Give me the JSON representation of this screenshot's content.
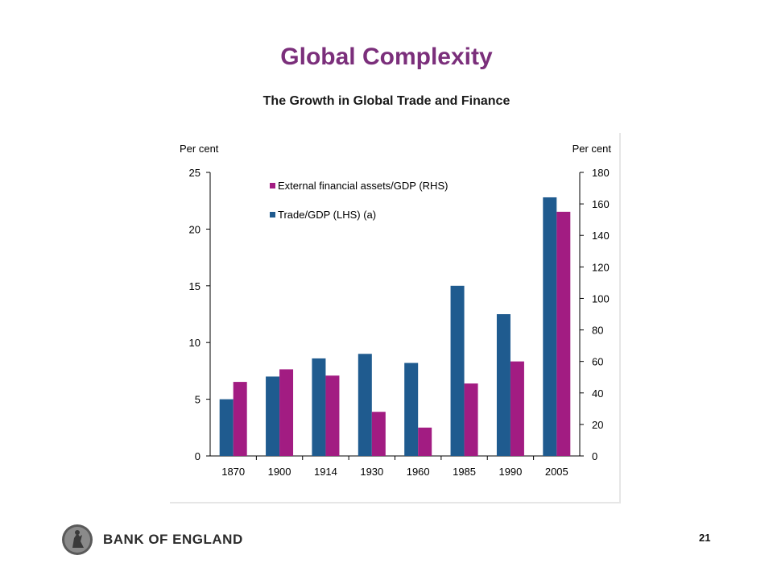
{
  "slide": {
    "title": "Global Complexity",
    "subtitle": "The Growth in Global Trade and Finance",
    "page_number": "21"
  },
  "footer": {
    "logo_text": "BANK OF ENGLAND"
  },
  "colors": {
    "title": "#7b2f7b",
    "trade_series": "#1f5b8f",
    "assets_series": "#a21c82"
  },
  "chart_data": {
    "type": "bar",
    "categories": [
      "1870",
      "1900",
      "1914",
      "1930",
      "1960",
      "1985",
      "1990",
      "2005"
    ],
    "series": [
      {
        "name": "Trade/GDP (LHS) (a)",
        "axis": "left",
        "color": "#1f5b8f",
        "values": [
          5.0,
          7.0,
          8.6,
          9.0,
          8.2,
          15.0,
          12.5,
          22.8
        ]
      },
      {
        "name": "External financial assets/GDP (RHS)",
        "axis": "right",
        "color": "#a21c82",
        "values": [
          47,
          55,
          51,
          28,
          18,
          46,
          60,
          155
        ]
      }
    ],
    "left_axis": {
      "label": "Per cent",
      "range": [
        0,
        25
      ],
      "ticks": [
        0,
        5,
        10,
        15,
        20,
        25
      ]
    },
    "right_axis": {
      "label": "Per cent",
      "range": [
        0,
        180
      ],
      "ticks": [
        0,
        20,
        40,
        60,
        80,
        100,
        120,
        140,
        160,
        180
      ]
    },
    "legend": [
      {
        "label": "External financial assets/GDP (RHS)",
        "color": "#a21c82"
      },
      {
        "label": "Trade/GDP (LHS) (a)",
        "color": "#1f5b8f"
      }
    ],
    "legend_position": "top-center",
    "grid": false
  }
}
